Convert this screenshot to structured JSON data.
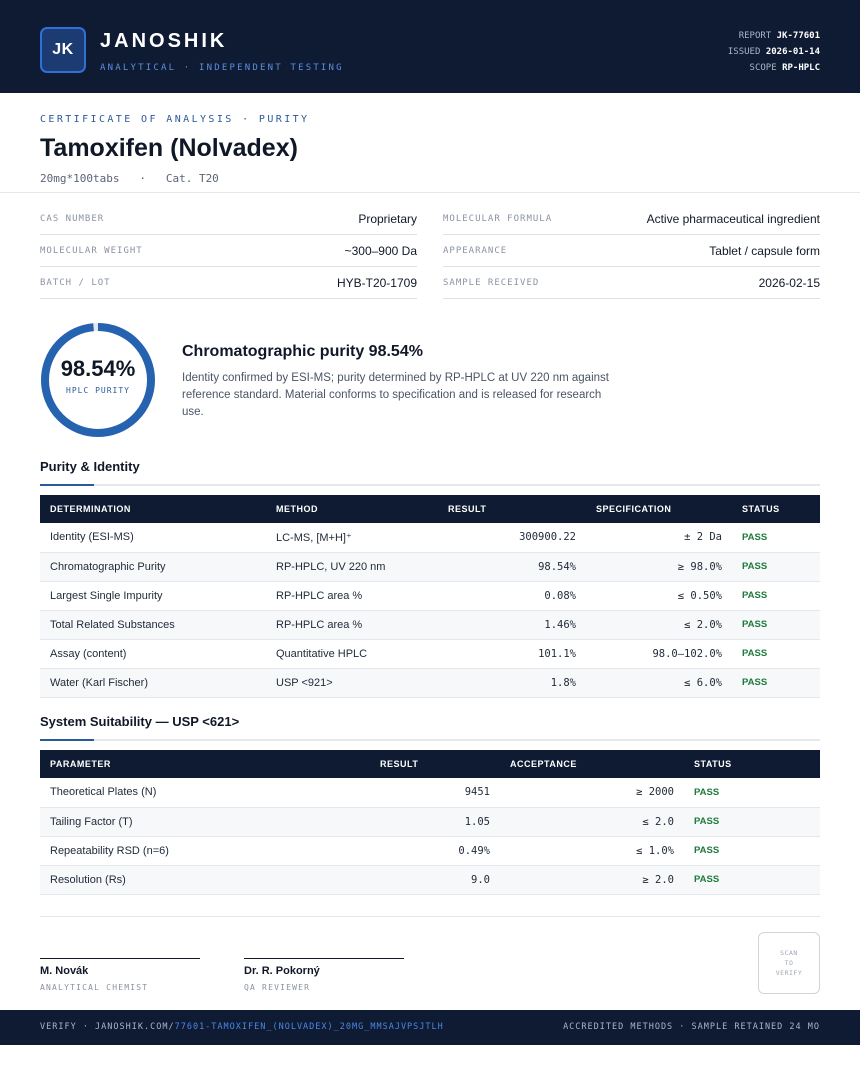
{
  "header": {
    "logo_text": "JK",
    "brand": "JANOSHIK",
    "brand_sub": "ANALYTICAL · INDEPENDENT TESTING",
    "meta": [
      {
        "label": "REPORT",
        "value": "JK-77601"
      },
      {
        "label": "ISSUED",
        "value": "2026-01-14"
      },
      {
        "label": "SCOPE",
        "value": "RP-HPLC"
      }
    ]
  },
  "doc": {
    "eyebrow": "CERTIFICATE OF ANALYSIS · PURITY",
    "title": "Tamoxifen (Nolvadex)",
    "subtitle": "20mg*100tabs   ·   Cat. T20"
  },
  "info": {
    "left": [
      {
        "label": "CAS NUMBER",
        "value": "Proprietary"
      },
      {
        "label": "MOLECULAR WEIGHT",
        "value": "~300–900 Da"
      },
      {
        "label": "BATCH / LOT",
        "value": "HYB-T20-1709"
      }
    ],
    "right": [
      {
        "label": "MOLECULAR FORMULA",
        "value": "Active pharmaceutical ingredient"
      },
      {
        "label": "APPEARANCE",
        "value": "Tablet / capsule form"
      },
      {
        "label": "SAMPLE RECEIVED",
        "value": "2026-02-15"
      }
    ]
  },
  "purity": {
    "value": "98.54%",
    "fraction": 0.9854,
    "label": "HPLC PURITY",
    "ring_color": "#2563b0",
    "summary_title": "Chromatographic purity 98.54%",
    "summary_text": "Identity confirmed by ESI-MS; purity determined by RP-HPLC at UV 220 nm against reference standard. Material conforms to specification and is released for research use."
  },
  "purity_table": {
    "title": "Purity & Identity",
    "headers": [
      "DETERMINATION",
      "METHOD",
      "RESULT",
      "SPECIFICATION",
      "STATUS"
    ],
    "rows": [
      [
        "Identity (ESI-MS)",
        "LC-MS, [M+H]⁺",
        "300900.22",
        "± 2 Da",
        "PASS"
      ],
      [
        "Chromatographic Purity",
        "RP-HPLC, UV 220 nm",
        "98.54%",
        "≥ 98.0%",
        "PASS"
      ],
      [
        "Largest Single Impurity",
        "RP-HPLC area %",
        "0.08%",
        "≤ 0.50%",
        "PASS"
      ],
      [
        "Total Related Substances",
        "RP-HPLC area %",
        "1.46%",
        "≤ 2.0%",
        "PASS"
      ],
      [
        "Assay (content)",
        "Quantitative HPLC",
        "101.1%",
        "98.0–102.0%",
        "PASS"
      ],
      [
        "Water (Karl Fischer)",
        "USP <921>",
        "1.8%",
        "≤ 6.0%",
        "PASS"
      ]
    ]
  },
  "suitability_table": {
    "title": "System Suitability — USP <621>",
    "headers": [
      "PARAMETER",
      "RESULT",
      "ACCEPTANCE",
      "STATUS"
    ],
    "rows": [
      [
        "Theoretical Plates (N)",
        "9451",
        "≥ 2000",
        "PASS"
      ],
      [
        "Tailing Factor (T)",
        "1.05",
        "≤ 2.0",
        "PASS"
      ],
      [
        "Repeatability RSD (n=6)",
        "0.49%",
        "≤ 1.0%",
        "PASS"
      ],
      [
        "Resolution (Rs)",
        "9.0",
        "≥ 2.0",
        "PASS"
      ]
    ]
  },
  "signatures": [
    {
      "name": "M. Novák",
      "role": "ANALYTICAL CHEMIST"
    },
    {
      "name": "Dr. R. Pokorný",
      "role": "QA REVIEWER"
    }
  ],
  "qr": {
    "lines": [
      "SCAN",
      "TO",
      "VERIFY"
    ]
  },
  "footer": {
    "verify_prefix": "VERIFY · JANOSHIK.COM/",
    "verify_link": "77601-TAMOXIFEN_(NOLVADEX)_20MG_MMSAJVPSJTLH",
    "right": "ACCREDITED METHODS · SAMPLE RETAINED 24 MO"
  }
}
